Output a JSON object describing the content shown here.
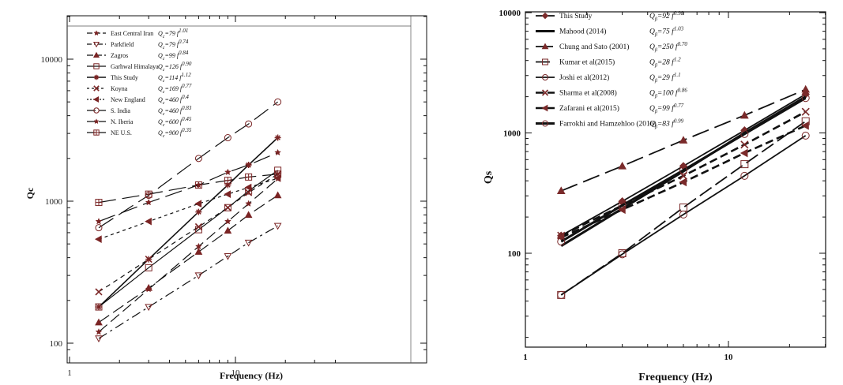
{
  "chart_data": [
    {
      "type": "line",
      "title": "",
      "xlabel": "Frequency (Hz)",
      "ylabel": "Qc",
      "xscale": "log",
      "yscale": "log",
      "xlim": [
        1,
        40
      ],
      "ylim": [
        90,
        20000
      ],
      "x_ticks": [
        "1",
        "10"
      ],
      "y_ticks": [
        "100",
        "1000",
        "10000"
      ],
      "legend_position": "top-left",
      "series": [
        {
          "name": "East Central Iran",
          "formula": "Qc=79 f^1.01",
          "marker": "star",
          "dash": "14 6",
          "x": [
            1.5,
            3,
            6,
            9,
            12,
            18
          ],
          "y": [
            120,
            240,
            480,
            720,
            960,
            1440
          ]
        },
        {
          "name": "Parkfield",
          "formula": "Qc=79 f^0.74",
          "marker": "tri-down",
          "dash": "12 5 3 5",
          "x": [
            1.5,
            3,
            6,
            9,
            12,
            18
          ],
          "y": [
            108,
            180,
            300,
            410,
            510,
            670
          ]
        },
        {
          "name": "Zagros",
          "formula": "Qc=99 f^0.84",
          "marker": "tri-up",
          "dash": "16 6",
          "x": [
            1.5,
            3,
            6,
            9,
            12,
            18
          ],
          "y": [
            140,
            245,
            440,
            620,
            800,
            1100
          ]
        },
        {
          "name": "Garhwal Himalaya",
          "formula": "Qc=126 f^0.90",
          "marker": "square",
          "dash": "none",
          "x": [
            1.5,
            3,
            6,
            9,
            12,
            18
          ],
          "y": [
            180,
            340,
            630,
            900,
            1180,
            1650
          ]
        },
        {
          "name": "This Study",
          "formula": "Qc=114 f^1.12",
          "marker": "asterisk",
          "dash": "none",
          "x": [
            1.5,
            3,
            6,
            9,
            12,
            18
          ],
          "y": [
            180,
            390,
            840,
            1300,
            1800,
            2800
          ]
        },
        {
          "name": "Koyna",
          "formula": "Qc=169 f^0.77",
          "marker": "x",
          "dash": "6 5",
          "x": [
            1.5,
            3,
            6,
            9,
            12,
            18
          ],
          "y": [
            230,
            390,
            660,
            900,
            1150,
            1550
          ]
        },
        {
          "name": "New England",
          "formula": "Qc=460 f^0.4",
          "marker": "tri-left",
          "dash": "4 4",
          "x": [
            1.5,
            3,
            6,
            9,
            12,
            18
          ],
          "y": [
            540,
            720,
            960,
            1120,
            1250,
            1450
          ]
        },
        {
          "name": "S. India",
          "formula": "Qc=460 f^0.83",
          "marker": "circle",
          "dash": "22 8",
          "x": [
            1.5,
            3,
            6,
            9,
            12,
            18
          ],
          "y": [
            650,
            1100,
            2000,
            2800,
            3500,
            5000
          ]
        },
        {
          "name": "N. Iberia",
          "formula": "Qc=600 f^0.45",
          "marker": "star",
          "dash": "22 8",
          "x": [
            1.5,
            3,
            6,
            9,
            12,
            18
          ],
          "y": [
            720,
            980,
            1300,
            1600,
            1800,
            2200
          ]
        },
        {
          "name": "NE U.S.",
          "formula": "Qc=900 f^0.35",
          "marker": "square-cross",
          "dash": "22 8",
          "x": [
            1.5,
            3,
            6,
            9,
            12,
            18
          ],
          "y": [
            980,
            1120,
            1300,
            1400,
            1480,
            1550
          ]
        }
      ]
    },
    {
      "type": "line",
      "title": "",
      "xlabel": "Frequency (Hz)",
      "ylabel": "Qs",
      "xscale": "log",
      "yscale": "log",
      "xlim": [
        1,
        40
      ],
      "ylim": [
        20,
        10000
      ],
      "x_ticks": [
        "1",
        "10"
      ],
      "y_ticks": [
        "100",
        "1000",
        "10000"
      ],
      "legend_position": "top-left",
      "series": [
        {
          "name": "This Study",
          "formula": "Qβ=92 f^0.98",
          "marker": "diamond",
          "dash": "none",
          "x": [
            1.5,
            3,
            6,
            12,
            24
          ],
          "y": [
            140,
            270,
            530,
            1050,
            2100
          ]
        },
        {
          "name": "Mahood (2014)",
          "formula": "Qβ=75 f^1.03",
          "marker": "none",
          "dash": "none",
          "x": [
            1.5,
            3,
            6,
            12,
            24
          ],
          "y": [
            115,
            235,
            480,
            1000,
            2000
          ]
        },
        {
          "name": "Chung and Sato (2001)",
          "formula": "Qβ=250 f^0.70",
          "marker": "tri-up",
          "dash": "22 8",
          "x": [
            1.5,
            3,
            6,
            12,
            24
          ],
          "y": [
            330,
            530,
            870,
            1400,
            2300
          ]
        },
        {
          "name": "Kumar et al(2015)",
          "formula": "Qβ=28 f^1.2",
          "marker": "square",
          "dash": "18 6",
          "x": [
            1.5,
            3,
            6,
            12,
            24
          ],
          "y": [
            45,
            100,
            240,
            550,
            1250
          ]
        },
        {
          "name": "Joshi et al(2012)",
          "formula": "Qβ=29 f^1.1",
          "marker": "circle",
          "dash": "none",
          "x": [
            1.5,
            3,
            6,
            12,
            24
          ],
          "y": [
            45,
            98,
            210,
            440,
            950
          ]
        },
        {
          "name": "Sharma et al(2008)",
          "formula": "Qβ=100 f^0.86",
          "marker": "x",
          "dash": "10 5",
          "x": [
            1.5,
            3,
            6,
            12,
            24
          ],
          "y": [
            140,
            250,
            440,
            800,
            1500
          ]
        },
        {
          "name": "Zafarani et al(2015)",
          "formula": "Qβ=99 f^0.77",
          "marker": "tri-left",
          "dash": "10 5",
          "x": [
            1.5,
            3,
            6,
            12,
            24
          ],
          "y": [
            135,
            230,
            390,
            680,
            1150
          ]
        },
        {
          "name": "Farrokhi and Hamzehloo (2016)",
          "formula": "Qβ=83 f^0.99",
          "marker": "circle",
          "dash": "none",
          "x": [
            1.5,
            3,
            6,
            12,
            24
          ],
          "y": [
            125,
            250,
            490,
            980,
            1950
          ]
        }
      ]
    }
  ],
  "left": {
    "ylabel": "Qc",
    "xlabel": "Frequency (Hz)",
    "y_ticks": [
      "100",
      "1000",
      "10000"
    ],
    "x_ticks": [
      "1",
      "10"
    ],
    "legend": [
      {
        "name": "East Central Iran",
        "f": "79",
        "e": "1.01"
      },
      {
        "name": "Parkfield",
        "f": "79",
        "e": "0.74"
      },
      {
        "name": "Zagros",
        "f": "99",
        "e": "0.84"
      },
      {
        "name": "Garhwal Himalaya",
        "f": "126",
        "e": "0.90"
      },
      {
        "name": "This Study",
        "f": "114",
        "e": "1.12"
      },
      {
        "name": "Koyna",
        "f": "169",
        "e": "0.77"
      },
      {
        "name": "New England",
        "f": "460",
        "e": "0.4"
      },
      {
        "name": "S. India",
        "f": "460",
        "e": "0.83"
      },
      {
        "name": "N. Iberia",
        "f": "600",
        "e": "0.45"
      },
      {
        "name": "NE U.S.",
        "f": "900",
        "e": "0.35"
      }
    ]
  },
  "right": {
    "ylabel": "Qs",
    "xlabel": "Frequency (Hz)",
    "y_ticks": [
      "100",
      "1000",
      "10000"
    ],
    "x_ticks": [
      "1",
      "10"
    ],
    "legend": [
      {
        "name": "This Study",
        "f": "92",
        "e": "0.98"
      },
      {
        "name": "Mahood (2014)",
        "f": "75",
        "e": "1.03"
      },
      {
        "name": "Chung and Sato (2001)",
        "f": "250",
        "e": "0.70"
      },
      {
        "name": "Kumar et al(2015)",
        "f": "28",
        "e": "1.2"
      },
      {
        "name": "Joshi et al(2012)",
        "f": "29",
        "e": "1.1"
      },
      {
        "name": "Sharma et al(2008)",
        "f": "100",
        "e": "0.86"
      },
      {
        "name": "Zafarani et al(2015)",
        "f": "99",
        "e": "0.77"
      },
      {
        "name": "Farrokhi and Hamzehloo (2016)",
        "f": "83",
        "e": "0.99"
      }
    ]
  },
  "colors": {
    "line": "#111111",
    "marker": "#7a2424",
    "marker_right": "#7a2a2a",
    "frame": "#111111"
  }
}
